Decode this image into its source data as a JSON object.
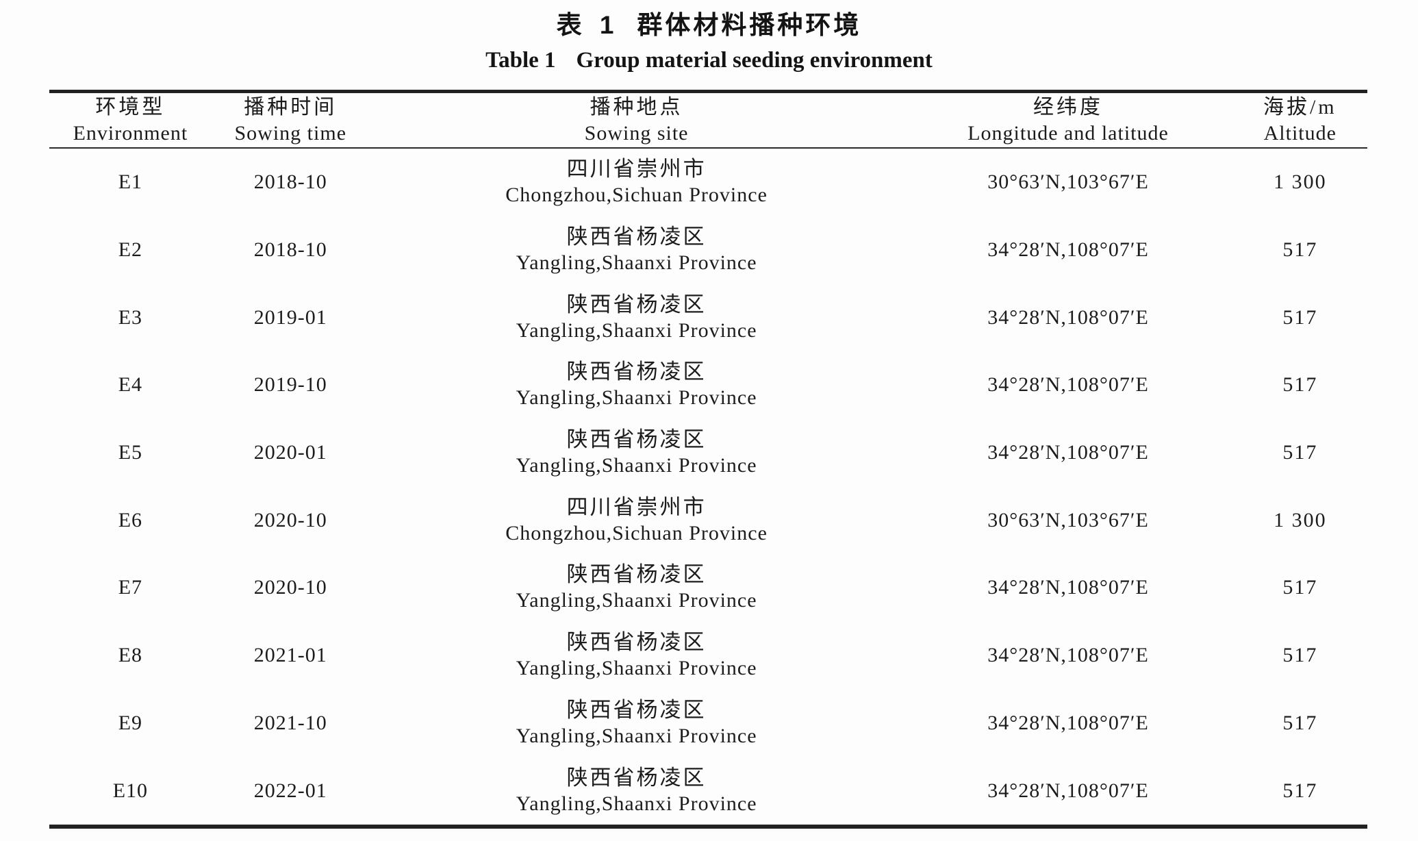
{
  "page": {
    "title_zh": {
      "label": "表 1",
      "text": "群体材料播种环境"
    },
    "title_en": {
      "label": "Table 1",
      "text": "Group material seeding environment"
    }
  },
  "table": {
    "columns": [
      {
        "zh": "环境型",
        "en": "Environment"
      },
      {
        "zh": "播种时间",
        "en": "Sowing time"
      },
      {
        "zh": "播种地点",
        "en": "Sowing site"
      },
      {
        "zh": "经纬度",
        "en": "Longitude and latitude"
      },
      {
        "zh": "海拔/m",
        "en": "Altitude"
      }
    ],
    "rows": [
      {
        "env": "E1",
        "time": "2018-10",
        "site_zh": "四川省崇州市",
        "site_en": "Chongzhou,Sichuan Province",
        "coords": "30°63′N,103°67′E",
        "altitude": "1 300"
      },
      {
        "env": "E2",
        "time": "2018-10",
        "site_zh": "陕西省杨凌区",
        "site_en": "Yangling,Shaanxi Province",
        "coords": "34°28′N,108°07′E",
        "altitude": "517"
      },
      {
        "env": "E3",
        "time": "2019-01",
        "site_zh": "陕西省杨凌区",
        "site_en": "Yangling,Shaanxi Province",
        "coords": "34°28′N,108°07′E",
        "altitude": "517"
      },
      {
        "env": "E4",
        "time": "2019-10",
        "site_zh": "陕西省杨凌区",
        "site_en": "Yangling,Shaanxi Province",
        "coords": "34°28′N,108°07′E",
        "altitude": "517"
      },
      {
        "env": "E5",
        "time": "2020-01",
        "site_zh": "陕西省杨凌区",
        "site_en": "Yangling,Shaanxi Province",
        "coords": "34°28′N,108°07′E",
        "altitude": "517"
      },
      {
        "env": "E6",
        "time": "2020-10",
        "site_zh": "四川省崇州市",
        "site_en": "Chongzhou,Sichuan Province",
        "coords": "30°63′N,103°67′E",
        "altitude": "1 300"
      },
      {
        "env": "E7",
        "time": "2020-10",
        "site_zh": "陕西省杨凌区",
        "site_en": "Yangling,Shaanxi Province",
        "coords": "34°28′N,108°07′E",
        "altitude": "517"
      },
      {
        "env": "E8",
        "time": "2021-01",
        "site_zh": "陕西省杨凌区",
        "site_en": "Yangling,Shaanxi Province",
        "coords": "34°28′N,108°07′E",
        "altitude": "517"
      },
      {
        "env": "E9",
        "time": "2021-10",
        "site_zh": "陕西省杨凌区",
        "site_en": "Yangling,Shaanxi Province",
        "coords": "34°28′N,108°07′E",
        "altitude": "517"
      },
      {
        "env": "E10",
        "time": "2022-01",
        "site_zh": "陕西省杨凌区",
        "site_en": "Yangling,Shaanxi Province",
        "coords": "34°28′N,108°07′E",
        "altitude": "517"
      }
    ]
  }
}
